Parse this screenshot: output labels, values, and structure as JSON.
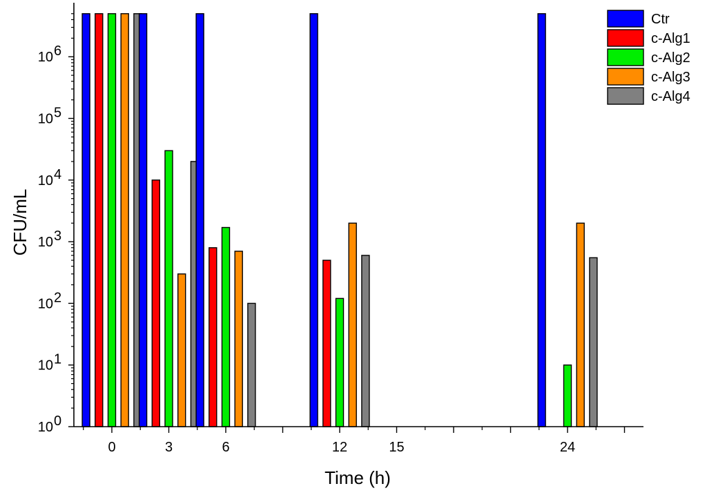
{
  "chart_data": {
    "type": "bar",
    "xlabel": "Time (h)",
    "ylabel": "CFU/mL",
    "yscale": "log",
    "ylim": [
      1,
      5000000
    ],
    "xlim": [
      -2,
      28
    ],
    "x_ticks_labeled": [
      0,
      3,
      6,
      12,
      15,
      24
    ],
    "x_ticks_unlabeled": [
      9,
      18,
      21,
      27
    ],
    "y_tick_labels": [
      {
        "value": 1,
        "base": "10",
        "exp": "0"
      },
      {
        "value": 10,
        "base": "10",
        "exp": "1"
      },
      {
        "value": 100,
        "base": "10",
        "exp": "2"
      },
      {
        "value": 1000,
        "base": "10",
        "exp": "3"
      },
      {
        "value": 10000,
        "base": "10",
        "exp": "4"
      },
      {
        "value": 100000,
        "base": "10",
        "exp": "5"
      },
      {
        "value": 1000000,
        "base": "10",
        "exp": "6"
      }
    ],
    "legend_position": "top-right",
    "categories": [
      0,
      3,
      6,
      12,
      24
    ],
    "series": [
      {
        "name": "Ctr",
        "color": "#0000ff",
        "values": [
          5000000,
          5000000,
          5000000,
          5000000,
          5000000
        ]
      },
      {
        "name": "c-Alg1",
        "color": "#ff0000",
        "values": [
          5000000,
          10000,
          800,
          500,
          null
        ]
      },
      {
        "name": "c-Alg2",
        "color": "#00ee00",
        "values": [
          5000000,
          30000,
          1700,
          120,
          10
        ]
      },
      {
        "name": "c-Alg3",
        "color": "#ff8c00",
        "values": [
          5000000,
          300,
          700,
          2000,
          2000
        ]
      },
      {
        "name": "c-Alg4",
        "color": "#808080",
        "values": [
          5000000,
          20000,
          100,
          600,
          550
        ]
      }
    ]
  }
}
